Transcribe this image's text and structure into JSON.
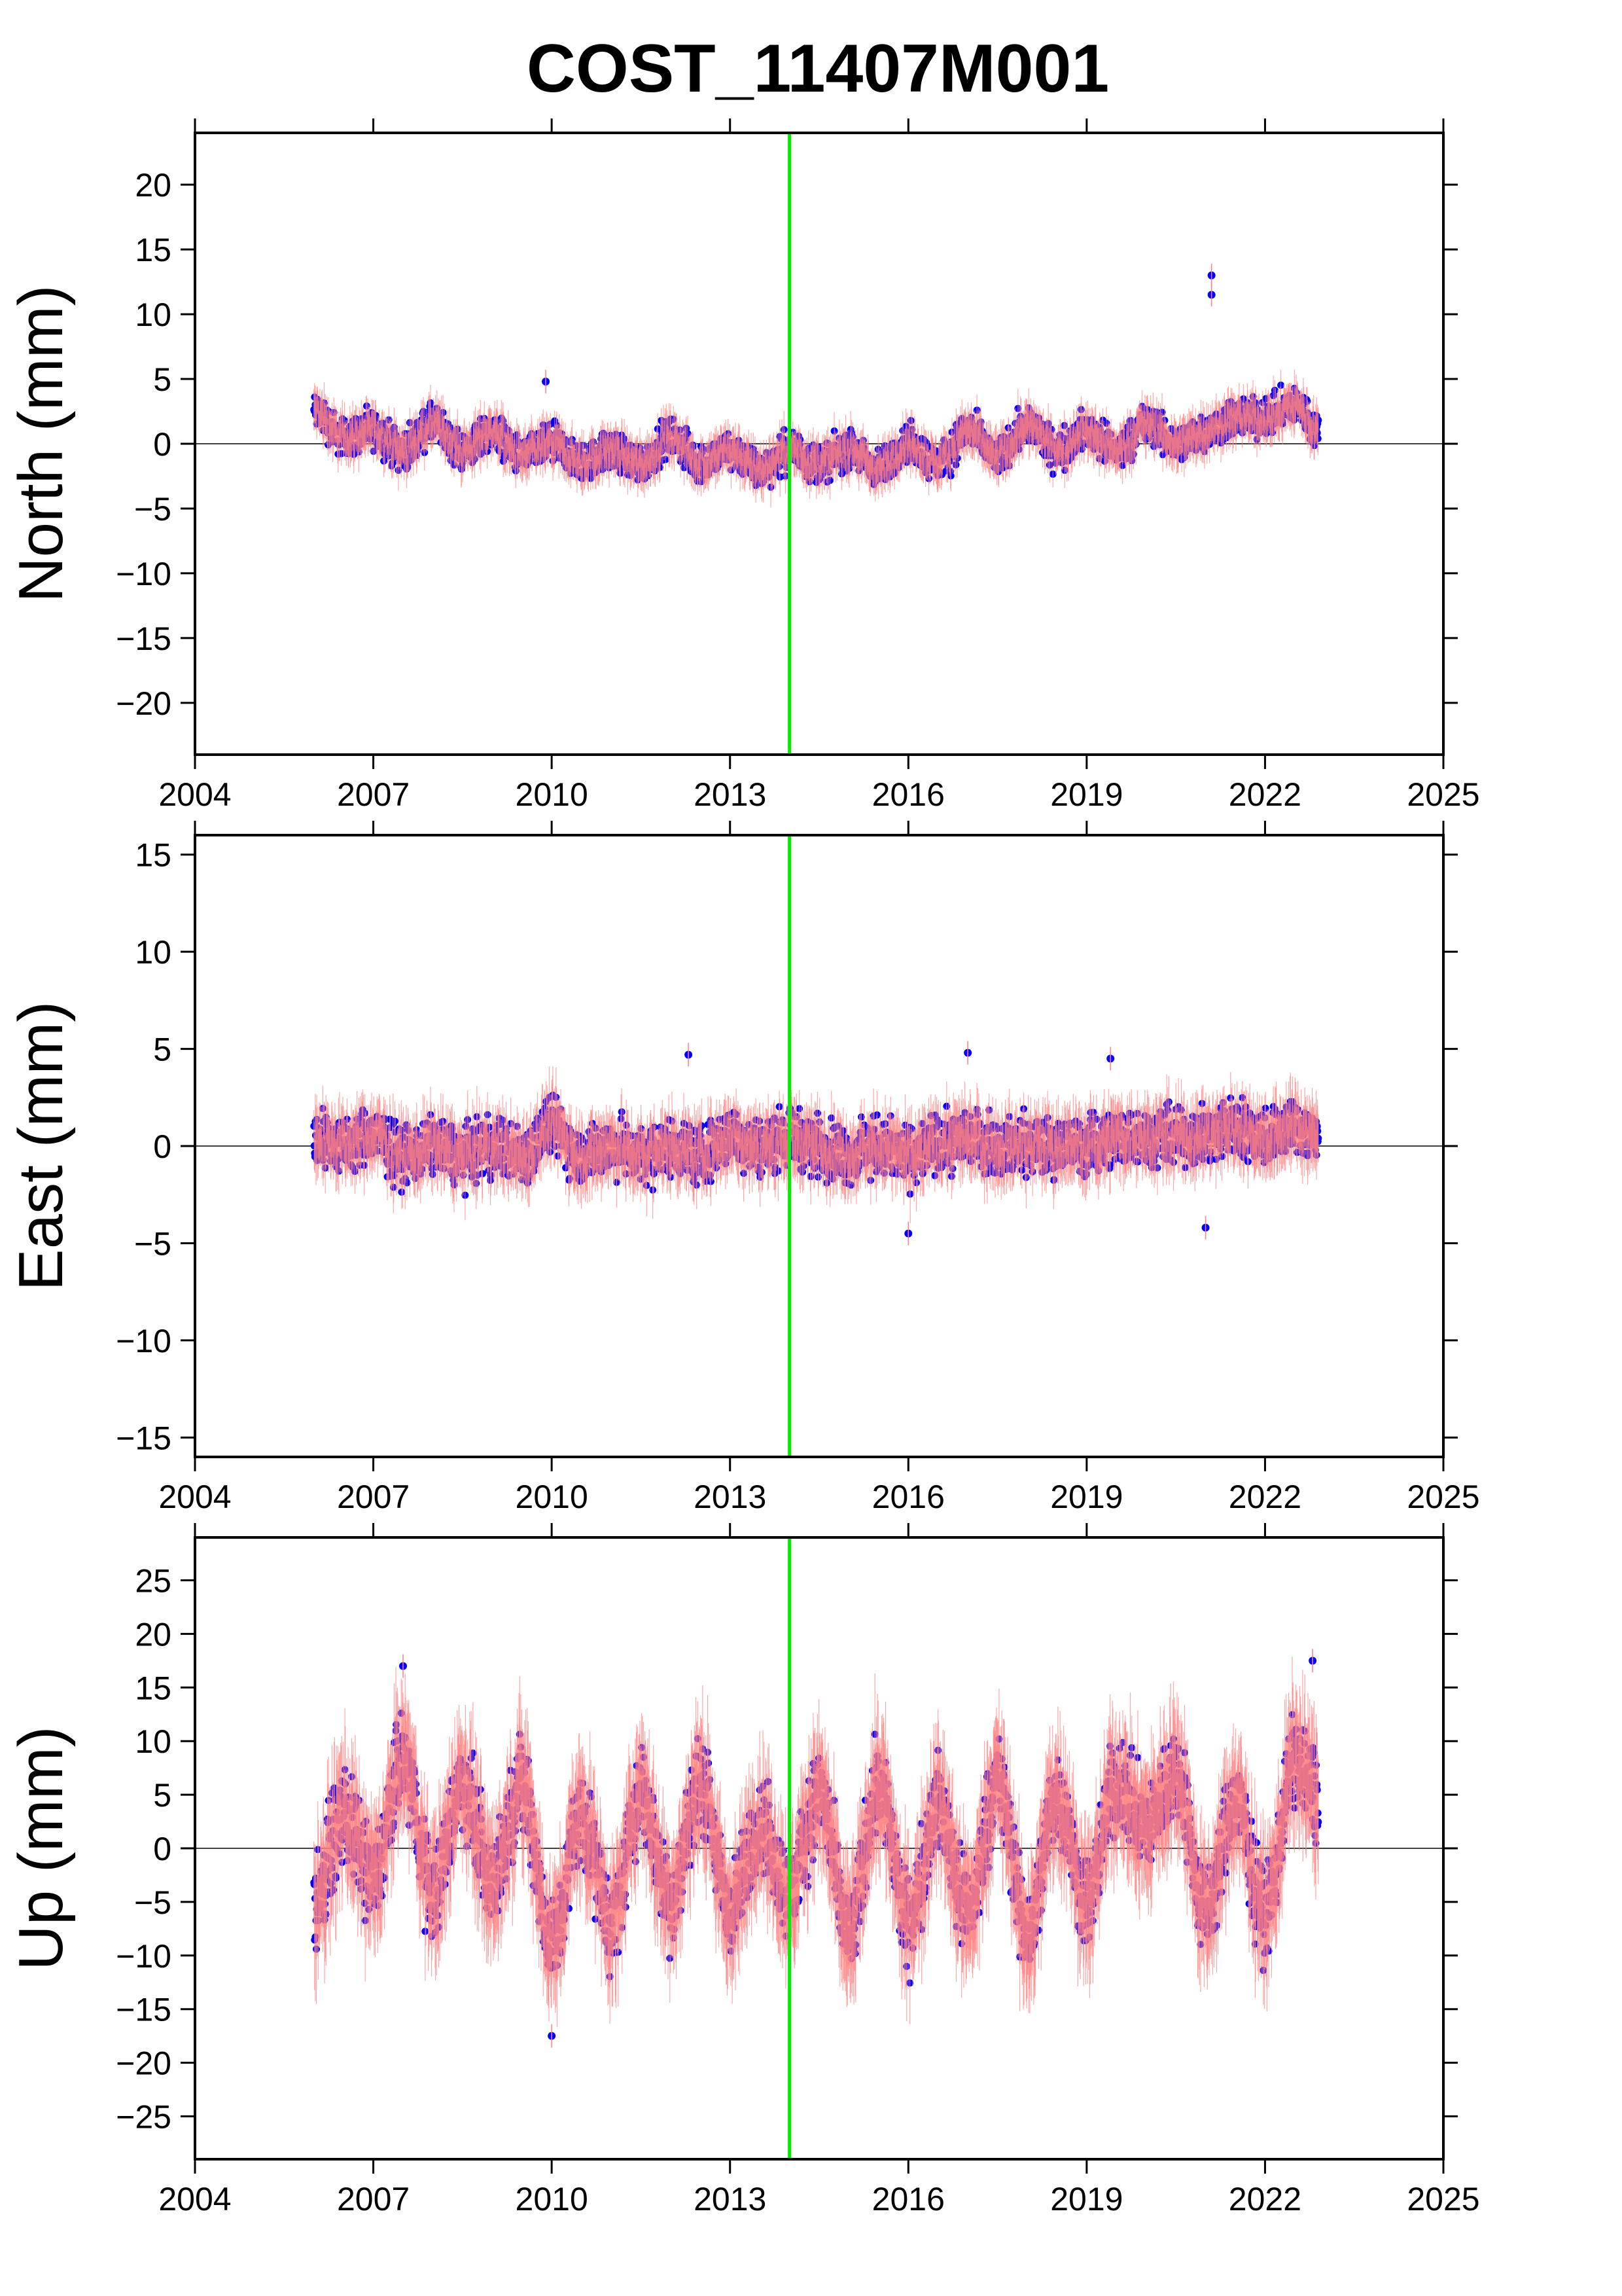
{
  "title": "COST_11407M001",
  "colors": {
    "points": "#0000ff",
    "errorbars": "#ff8080",
    "event_line": "#00ee00",
    "zero_line": "#000000"
  },
  "chart_data": [
    {
      "type": "scatter",
      "ylabel": "North (mm)",
      "xlim": [
        2004,
        2025
      ],
      "ylim": [
        -24,
        24
      ],
      "x_ticks": [
        "2004",
        "2007",
        "2010",
        "2013",
        "2016",
        "2019",
        "2022",
        "2025"
      ],
      "y_ticks": [
        "20",
        "15",
        "10",
        "5",
        "0",
        "−5",
        "−10",
        "−15",
        "−20"
      ],
      "event_line_x": 2014.0,
      "data_span": [
        2006.0,
        2022.9
      ],
      "series": [
        {
          "x": [
            2006.0,
            2006.5,
            2007.0,
            2007.5,
            2008.0,
            2008.5,
            2009.0,
            2009.5,
            2010.0,
            2010.5,
            2011.0,
            2011.5,
            2012.0,
            2012.5,
            2013.0,
            2013.5,
            2014.0,
            2014.5,
            2015.0,
            2015.5,
            2016.0,
            2016.5,
            2017.0,
            2017.5,
            2018.0,
            2018.5,
            2019.0,
            2019.5,
            2020.0,
            2020.5,
            2021.0,
            2021.5,
            2022.0,
            2022.5,
            2022.9
          ],
          "values": [
            2.5,
            0.5,
            1.0,
            -0.5,
            1.5,
            -0.5,
            1.0,
            -1.0,
            0.0,
            -1.5,
            -0.5,
            -1.5,
            0.5,
            -1.5,
            -0.5,
            -2.0,
            -0.5,
            -1.5,
            -0.5,
            -2.0,
            0.0,
            -1.5,
            1.0,
            -1.0,
            1.5,
            -0.5,
            1.0,
            -0.5,
            1.5,
            0.0,
            1.0,
            2.0,
            2.0,
            3.0,
            1.0
          ],
          "outliers": [
            [
              2021.1,
              13.0
            ],
            [
              2021.1,
              11.5
            ],
            [
              2009.9,
              4.8
            ]
          ]
        }
      ]
    },
    {
      "type": "scatter",
      "ylabel": "East (mm)",
      "xlim": [
        2004,
        2025
      ],
      "ylim": [
        -16,
        16
      ],
      "x_ticks": [
        "2004",
        "2007",
        "2010",
        "2013",
        "2016",
        "2019",
        "2022",
        "2025"
      ],
      "y_ticks": [
        "15",
        "10",
        "5",
        "0",
        "−5",
        "−10",
        "−15"
      ],
      "event_line_x": 2014.0,
      "data_span": [
        2006.0,
        2022.9
      ],
      "series": [
        {
          "x": [
            2006.0,
            2006.5,
            2007.0,
            2007.5,
            2008.0,
            2008.5,
            2009.0,
            2009.5,
            2010.0,
            2010.5,
            2011.0,
            2011.5,
            2012.0,
            2012.5,
            2013.0,
            2013.5,
            2014.0,
            2014.5,
            2015.0,
            2015.5,
            2016.0,
            2016.5,
            2017.0,
            2017.5,
            2018.0,
            2018.5,
            2019.0,
            2019.5,
            2020.0,
            2020.5,
            2021.0,
            2021.5,
            2022.0,
            2022.5,
            2022.9
          ],
          "values": [
            0.5,
            0.0,
            0.5,
            -0.5,
            0.0,
            -0.5,
            0.0,
            -0.5,
            1.0,
            -0.5,
            0.0,
            -0.5,
            0.0,
            -0.5,
            0.5,
            0.0,
            0.5,
            0.0,
            -0.5,
            0.0,
            -0.5,
            0.0,
            0.5,
            0.0,
            0.0,
            0.0,
            0.0,
            0.5,
            0.5,
            0.5,
            0.5,
            1.0,
            0.5,
            1.0,
            0.5
          ],
          "outliers": [
            [
              2012.3,
              4.7
            ],
            [
              2017.0,
              4.8
            ],
            [
              2019.4,
              4.5
            ],
            [
              2021.0,
              -4.2
            ],
            [
              2016.0,
              -4.5
            ]
          ]
        }
      ]
    },
    {
      "type": "scatter",
      "ylabel": "Up (mm)",
      "xlim": [
        2004,
        2025
      ],
      "ylim": [
        -29,
        29
      ],
      "x_ticks": [
        "2004",
        "2007",
        "2010",
        "2013",
        "2016",
        "2019",
        "2022",
        "2025"
      ],
      "y_ticks": [
        "25",
        "20",
        "15",
        "10",
        "5",
        "0",
        "−5",
        "−10",
        "−15",
        "−20",
        "−25"
      ],
      "event_line_x": 2014.0,
      "data_span": [
        2006.0,
        2022.9
      ],
      "series": [
        {
          "x": [
            2006.0,
            2006.5,
            2007.0,
            2007.5,
            2008.0,
            2008.5,
            2009.0,
            2009.5,
            2010.0,
            2010.5,
            2011.0,
            2011.5,
            2012.0,
            2012.5,
            2013.0,
            2013.5,
            2014.0,
            2014.5,
            2015.0,
            2015.5,
            2016.0,
            2016.5,
            2017.0,
            2017.5,
            2018.0,
            2018.5,
            2019.0,
            2019.5,
            2020.0,
            2020.5,
            2021.0,
            2021.5,
            2022.0,
            2022.5,
            2022.9
          ],
          "values": [
            -5.0,
            3.0,
            -3.0,
            8.0,
            -4.0,
            6.0,
            -3.0,
            6.0,
            -9.0,
            3.0,
            -7.0,
            5.0,
            -5.0,
            6.0,
            -6.0,
            2.0,
            -4.0,
            5.0,
            -8.0,
            6.0,
            -7.0,
            4.0,
            -6.0,
            6.0,
            -8.0,
            5.0,
            -5.0,
            6.0,
            2.0,
            7.0,
            -6.0,
            4.0,
            -6.0,
            8.0,
            5.0
          ],
          "outliers": [
            [
              2010.0,
              -17.5
            ],
            [
              2007.5,
              17.0
            ],
            [
              2022.8,
              17.5
            ]
          ]
        }
      ]
    }
  ]
}
